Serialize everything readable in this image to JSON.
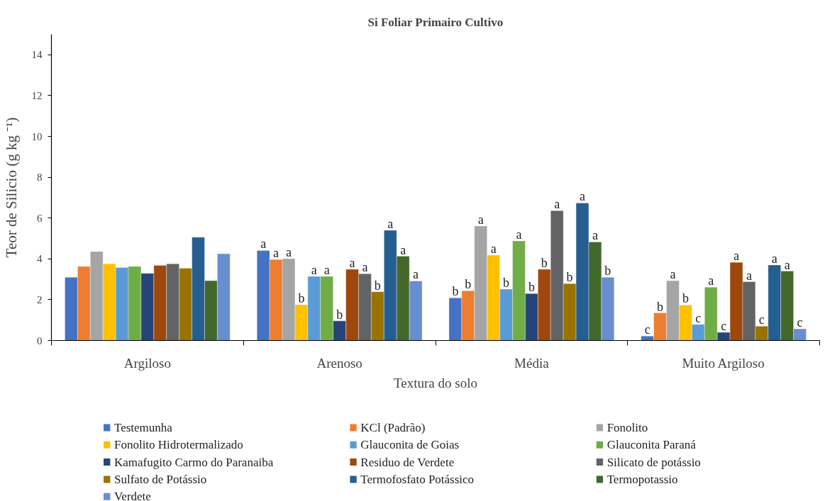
{
  "chart_data": {
    "type": "bar",
    "title": "Si Foliar Primairo Cultivo",
    "xlabel": "Textura do solo",
    "ylabel": "Teor de Silicio (g kg ⁻¹)",
    "categories": [
      "Argiloso",
      "Arenoso",
      "Média",
      "Muito Argiloso"
    ],
    "series": [
      {
        "name": "Testemunha",
        "color": "#4472c4",
        "values": [
          3.1,
          4.41,
          2.09,
          0.22
        ],
        "value_labels": [
          null,
          "a",
          "b",
          "c"
        ]
      },
      {
        "name": "KCl (Padrão)",
        "color": "#ed7d31",
        "values": [
          3.63,
          3.97,
          2.44,
          1.35
        ],
        "value_labels": [
          null,
          "a",
          "b",
          "b"
        ]
      },
      {
        "name": "Fonolito",
        "color": "#a5a5a5",
        "values": [
          4.36,
          4.01,
          5.61,
          2.93
        ],
        "value_labels": [
          null,
          "a",
          "a",
          "a"
        ]
      },
      {
        "name": "Fonolito Hidrotermalizado",
        "color": "#ffc000",
        "values": [
          3.76,
          1.75,
          4.18,
          1.74
        ],
        "value_labels": [
          null,
          "b",
          "a",
          "b"
        ]
      },
      {
        "name": "Glauconita de Goias",
        "color": "#5b9bd5",
        "values": [
          3.58,
          3.14,
          2.52,
          0.79
        ],
        "value_labels": [
          null,
          "a",
          "b",
          "c"
        ]
      },
      {
        "name": "Glauconita Paraná",
        "color": "#70ad47",
        "values": [
          3.63,
          3.14,
          4.88,
          2.61
        ],
        "value_labels": [
          null,
          "a",
          "a",
          "a"
        ]
      },
      {
        "name": "Kamafugito Carmo do Paranaiba",
        "color": "#264478",
        "values": [
          3.29,
          0.96,
          2.3,
          0.4
        ],
        "value_labels": [
          null,
          "b",
          "b",
          "c"
        ]
      },
      {
        "name": "Residuo de Verdete",
        "color": "#9e480e",
        "values": [
          3.68,
          3.49,
          3.49,
          3.83
        ],
        "value_labels": [
          null,
          "a",
          "b",
          "a"
        ]
      },
      {
        "name": "Silicato de potássio",
        "color": "#636363",
        "values": [
          3.76,
          3.27,
          6.36,
          2.88
        ],
        "value_labels": [
          null,
          "a",
          "a",
          "a"
        ]
      },
      {
        "name": "Sulfato de Potássio",
        "color": "#997300",
        "values": [
          3.54,
          2.39,
          2.79,
          0.7
        ],
        "value_labels": [
          null,
          "b",
          "b",
          "c"
        ]
      },
      {
        "name": "Termofosfato Potássico",
        "color": "#255e91",
        "values": [
          5.06,
          5.4,
          6.74,
          3.7
        ],
        "value_labels": [
          null,
          "a",
          "a",
          "a"
        ]
      },
      {
        "name": "Termopotassio",
        "color": "#43682b",
        "values": [
          2.93,
          4.13,
          4.83,
          3.4
        ],
        "value_labels": [
          null,
          "a",
          "a",
          "a"
        ]
      },
      {
        "name": "Verdete",
        "color": "#698ed0",
        "values": [
          4.25,
          2.92,
          3.1,
          0.57
        ],
        "value_labels": [
          null,
          "a",
          "b",
          "c"
        ]
      }
    ],
    "ylim": [
      0,
      15
    ],
    "yticks": [
      0,
      2,
      4,
      6,
      8,
      10,
      12,
      14
    ],
    "grid": false,
    "legend": "bottom"
  }
}
